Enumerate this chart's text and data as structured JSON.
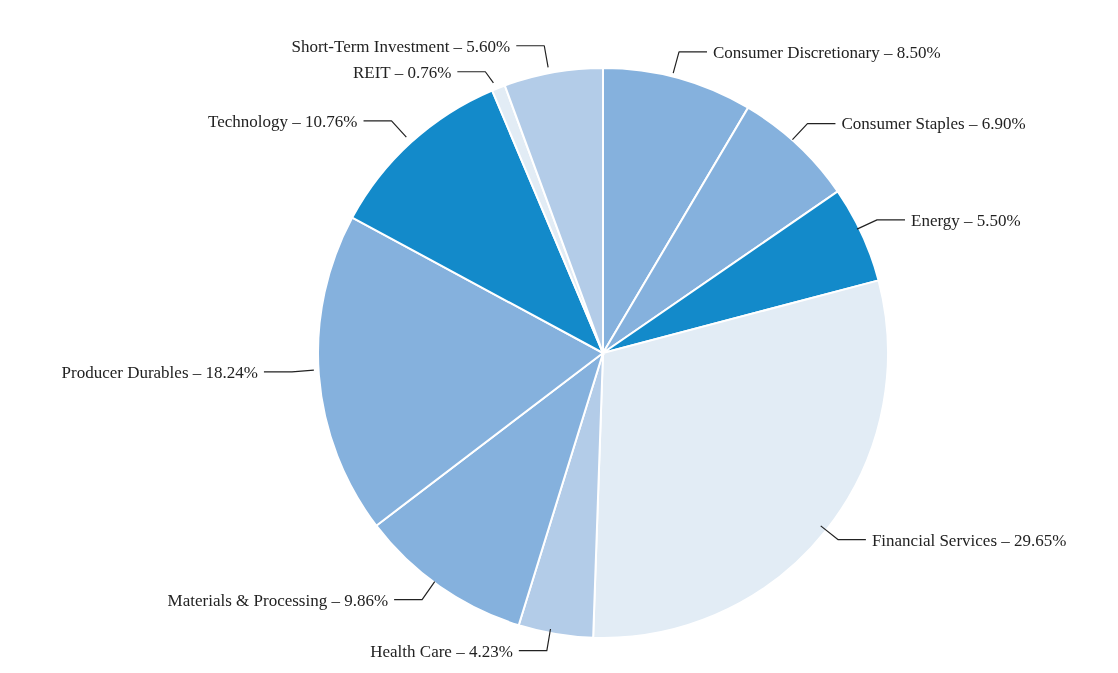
{
  "chart_data": {
    "type": "pie",
    "categories": [
      "Consumer Discretionary",
      "Consumer Staples",
      "Energy",
      "Financial Services",
      "Health Care",
      "Materials & Processing",
      "Producer Durables",
      "Technology",
      "REIT",
      "Short-Term Investment"
    ],
    "values": [
      8.5,
      6.9,
      5.5,
      29.65,
      4.23,
      9.86,
      18.24,
      10.76,
      0.76,
      5.6
    ],
    "value_labels": [
      "8.50%",
      "6.90%",
      "5.50%",
      "29.65%",
      "4.23%",
      "9.86%",
      "18.24%",
      "10.76%",
      "0.76%",
      "5.60%"
    ],
    "colors": [
      "#85b1dd",
      "#85b1dd",
      "#138aca",
      "#e2ecf5",
      "#b3cce8",
      "#85b1dd",
      "#85b1dd",
      "#138aca",
      "#e2ecf5",
      "#b3cce8"
    ]
  }
}
